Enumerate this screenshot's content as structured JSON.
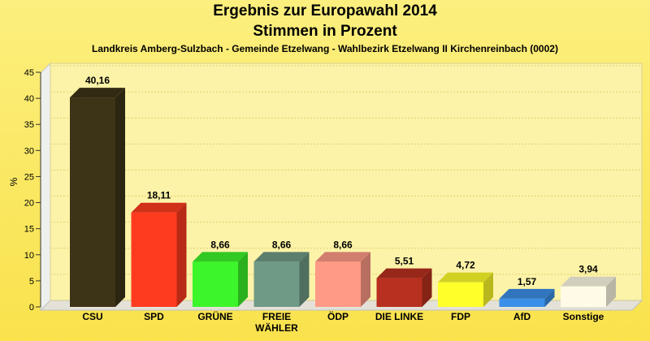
{
  "chart_data": {
    "type": "bar",
    "title": "Ergebnis zur Europawahl 2014",
    "subtitle": "Stimmen in Prozent",
    "subtitle2": "Landkreis Amberg-Sulzbach - Gemeinde Etzelwang - Wahlbezirk Etzelwang II Kirchenreinbach (0002)",
    "ylabel": "%",
    "ylim": [
      0,
      45
    ],
    "yticks": [
      0,
      5,
      10,
      15,
      20,
      25,
      30,
      35,
      40,
      45
    ],
    "grid": true,
    "categories": [
      "CSU",
      "SPD",
      "GRÜNE",
      "FREIE WÄHLER",
      "ÖDP",
      "DIE LINKE",
      "FDP",
      "AfD",
      "Sonstige"
    ],
    "category_lines": [
      [
        "CSU"
      ],
      [
        "SPD"
      ],
      [
        "GRÜNE"
      ],
      [
        "FREIE",
        "WÄHLER"
      ],
      [
        "ÖDP"
      ],
      [
        "DIE LINKE"
      ],
      [
        "FDP"
      ],
      [
        "AfD"
      ],
      [
        "Sonstige"
      ]
    ],
    "values": [
      40.16,
      18.11,
      8.66,
      8.66,
      8.66,
      5.51,
      4.72,
      1.57,
      3.94
    ],
    "value_labels": [
      "40,16",
      "18,11",
      "8,66",
      "8,66",
      "8,66",
      "5,51",
      "4,72",
      "1,57",
      "3,94"
    ],
    "colors": [
      "#3d3317",
      "#ff3b1f",
      "#3cf52a",
      "#6f9a85",
      "#ff9a86",
      "#b8301f",
      "#ffff2a",
      "#3a8fe8",
      "#fffbe6"
    ]
  }
}
